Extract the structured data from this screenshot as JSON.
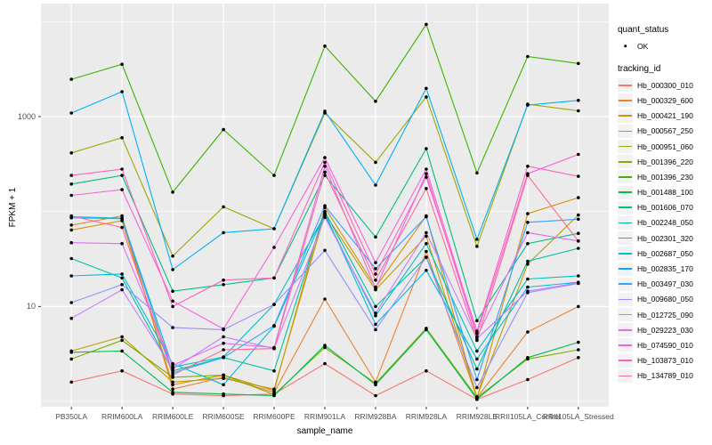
{
  "chart_data": {
    "type": "line",
    "xlabel": "sample_name",
    "ylabel": "FPKM + 1",
    "y_scale": "log10",
    "grid": true,
    "legend_position": "right",
    "panel_bg": "#EBEBEB",
    "grid_color": "#FFFFFF",
    "point_color": "#000000",
    "y_major_ticks": [
      {
        "label": "10",
        "value": 10
      },
      {
        "label": "1000",
        "value": 1000
      }
    ],
    "y_minor_ticks": [
      1,
      100,
      10000
    ],
    "ylim": [
      0.85,
      15500
    ],
    "categories": [
      "PB350LA",
      "RRIM600LA",
      "RRIM600LE",
      "RRIM600SE",
      "RRIM600PE",
      "RRIM901LA",
      "RRIM928BA",
      "RRIM928LA",
      "RRIM928LE",
      "RRII105LA_Control",
      "RRII105LA_Stressed"
    ],
    "series": [
      {
        "name": "Hb_000300_010",
        "color": "#F8766D",
        "values": [
          1.6,
          2.1,
          1.2,
          1.15,
          1.2,
          2.5,
          1.15,
          2.1,
          1.05,
          1.7,
          2.9
        ]
      },
      {
        "name": "Hb_000329_600",
        "color": "#EA8331",
        "values": [
          72,
          90,
          1.35,
          1.8,
          1.25,
          12,
          1.6,
          38,
          1.1,
          5.4,
          10
        ]
      },
      {
        "name": "Hb_000421_190",
        "color": "#D89000",
        "values": [
          64,
          80,
          1.5,
          1.9,
          1.3,
          110,
          16,
          90,
          1.08,
          95,
          140
        ]
      },
      {
        "name": "Hb_000567_250",
        "color": "#C09B00",
        "values": [
          3.4,
          4.8,
          1.6,
          1.75,
          1.35,
          95,
          15,
          55,
          1.12,
          28,
          92
        ]
      },
      {
        "name": "Hb_000951_060",
        "color": "#A3A500",
        "values": [
          415,
          600,
          34,
          112,
          66,
          1090,
          330,
          1610,
          43,
          1350,
          1150
        ]
      },
      {
        "name": "Hb_001396_220",
        "color": "#7CAE00",
        "values": [
          2.8,
          4.4,
          1.8,
          1.9,
          1.18,
          3.7,
          1.55,
          5.9,
          1.1,
          2.8,
          3.5
        ]
      },
      {
        "name": "Hb_001396_230",
        "color": "#39B600",
        "values": [
          2470,
          3560,
          160,
          730,
          240,
          5530,
          1450,
          9350,
          255,
          4290,
          3630
        ]
      },
      {
        "name": "Hb_001488_100",
        "color": "#00BB4E",
        "values": [
          3.3,
          3.4,
          1.25,
          1.2,
          1.15,
          3.9,
          1.5,
          5.7,
          1.06,
          2.9,
          4.2
        ]
      },
      {
        "name": "Hb_001606_070",
        "color": "#00BF7D",
        "values": [
          195,
          240,
          14.5,
          17,
          20,
          240,
          54,
          460,
          7.1,
          46,
          59
        ]
      },
      {
        "name": "Hb_002248_050",
        "color": "#00C1A3",
        "values": [
          32,
          20,
          2.1,
          2.9,
          2.1,
          100,
          10,
          33,
          2.2,
          30,
          41
        ]
      },
      {
        "name": "Hb_002301_320",
        "color": "#00BFC4",
        "values": [
          88,
          85,
          2.3,
          2.95,
          10.5,
          92,
          8,
          46,
          3.4,
          19.5,
          21
        ]
      },
      {
        "name": "Hb_002687_050",
        "color": "#00BAE0",
        "values": [
          21,
          22,
          2.5,
          1.5,
          6.2,
          96,
          6.5,
          24,
          2.8,
          16,
          18
        ]
      },
      {
        "name": "Hb_002835_170",
        "color": "#00B0F6",
        "values": [
          1090,
          1830,
          24.5,
          60,
          66,
          1140,
          190,
          1980,
          51,
          1320,
          1480
        ]
      },
      {
        "name": "Hb_003497_030",
        "color": "#35A2FF",
        "values": [
          86,
          84,
          2.0,
          2.9,
          6.3,
          115,
          25,
          88,
          1.7,
          77,
          83
        ]
      },
      {
        "name": "Hb_009680_050",
        "color": "#9590FF",
        "values": [
          11,
          17,
          6.0,
          5.7,
          10.5,
          39,
          5.7,
          33,
          1.4,
          14,
          17.5
        ]
      },
      {
        "name": "Hb_012725_090",
        "color": "#C77CFF",
        "values": [
          7.5,
          15,
          2.2,
          4.8,
          3.6,
          87,
          8.5,
          60,
          4.6,
          14.5,
          17.8
        ]
      },
      {
        "name": "Hb_029223_030",
        "color": "#E76BF3",
        "values": [
          47,
          46,
          2.4,
          4.1,
          3.7,
          300,
          15.5,
          250,
          4.8,
          60,
          49
        ]
      },
      {
        "name": "Hb_074590_010",
        "color": "#FA62DB",
        "values": [
          148,
          170,
          11.4,
          5.8,
          42,
          370,
          29,
          280,
          5.2,
          250,
          400
        ]
      },
      {
        "name": "Hb_103873_010",
        "color": "#FF62BC",
        "values": [
          240,
          280,
          10,
          19,
          20,
          330,
          22,
          230,
          5.5,
          300,
          235
        ]
      },
      {
        "name": "Hb_134789_010",
        "color": "#FF6A98",
        "values": [
          90,
          68,
          1.9,
          3.5,
          3.6,
          260,
          19,
          175,
          4.4,
          240,
          49
        ]
      }
    ]
  },
  "legend": {
    "quant_title": "quant_status",
    "quant_items": [
      {
        "label": "OK"
      }
    ],
    "tracking_title": "tracking_id",
    "key_bg": "#F2F2F2"
  }
}
